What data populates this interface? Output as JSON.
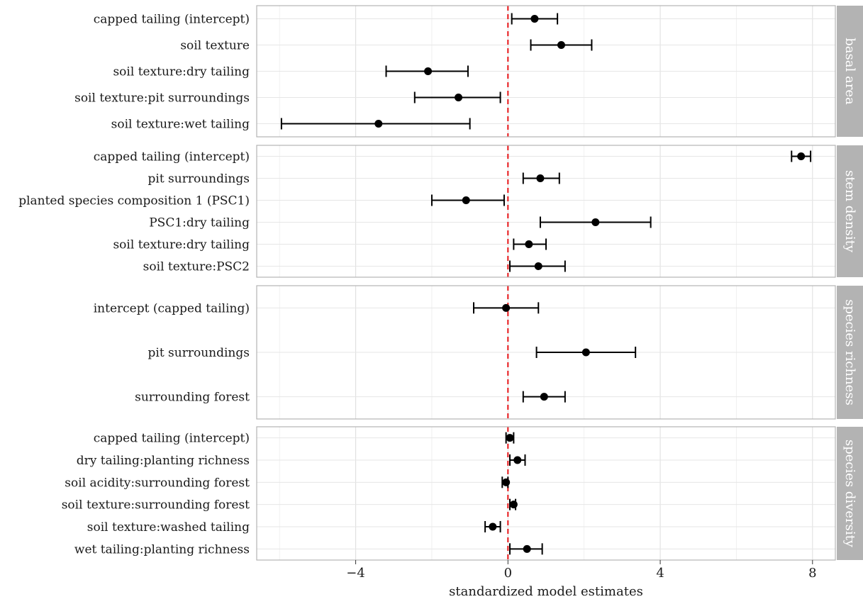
{
  "chart_data": {
    "type": "scatter",
    "subtype": "coefficient-plot-with-error-bars",
    "xlabel": "standardized model estimates",
    "xlim": [
      -6.6,
      8.6
    ],
    "xticks": [
      -4,
      0,
      4,
      8
    ],
    "xtick_labels": [
      "−4",
      "0",
      "4",
      "8"
    ],
    "reference_line": {
      "x": 0,
      "style": "dashed",
      "color": "#e8282b"
    },
    "grid": true,
    "colors": {
      "point": "#000000",
      "errorbar": "#000000",
      "strip_background": "#b3b3b3",
      "strip_text": "#ffffff",
      "panel_border": "#b3b3b3",
      "grid": "#e6e6e6"
    },
    "panels": [
      {
        "name": "basal area",
        "terms": [
          {
            "label": "capped tailing (intercept)",
            "estimate": 0.7,
            "lower": 0.1,
            "upper": 1.3
          },
          {
            "label": "soil texture",
            "estimate": 1.4,
            "lower": 0.6,
            "upper": 2.2
          },
          {
            "label": "soil texture:dry tailing",
            "estimate": -2.1,
            "lower": -3.2,
            "upper": -1.05
          },
          {
            "label": "soil texture:pit surroundings",
            "estimate": -1.3,
            "lower": -2.45,
            "upper": -0.2
          },
          {
            "label": "soil texture:wet tailing",
            "estimate": -3.4,
            "lower": -5.95,
            "upper": -1.0
          }
        ]
      },
      {
        "name": "stem density",
        "terms": [
          {
            "label": "capped tailing (intercept)",
            "estimate": 7.7,
            "lower": 7.45,
            "upper": 7.95
          },
          {
            "label": "pit surroundings",
            "estimate": 0.85,
            "lower": 0.4,
            "upper": 1.35
          },
          {
            "label": "planted species composition 1 (PSC1)",
            "estimate": -1.1,
            "lower": -2.0,
            "upper": -0.1
          },
          {
            "label": "PSC1:dry tailing",
            "estimate": 2.3,
            "lower": 0.85,
            "upper": 3.75
          },
          {
            "label": "soil texture:dry tailing",
            "estimate": 0.55,
            "lower": 0.15,
            "upper": 1.0
          },
          {
            "label": "soil texture:PSC2",
            "estimate": 0.8,
            "lower": 0.05,
            "upper": 1.5
          }
        ]
      },
      {
        "name": "species richness",
        "terms": [
          {
            "label": "intercept (capped tailing)",
            "estimate": -0.05,
            "lower": -0.9,
            "upper": 0.8
          },
          {
            "label": "pit surroundings",
            "estimate": 2.05,
            "lower": 0.75,
            "upper": 3.35
          },
          {
            "label": "surrounding forest",
            "estimate": 0.95,
            "lower": 0.4,
            "upper": 1.5
          }
        ]
      },
      {
        "name": "species diversity",
        "terms": [
          {
            "label": "capped tailing (intercept)",
            "estimate": 0.05,
            "lower": -0.05,
            "upper": 0.15
          },
          {
            "label": "dry tailing:planting richness",
            "estimate": 0.25,
            "lower": 0.05,
            "upper": 0.45
          },
          {
            "label": "soil acidity:surrounding forest",
            "estimate": -0.05,
            "lower": -0.15,
            "upper": 0.0
          },
          {
            "label": "soil texture:surrounding forest",
            "estimate": 0.15,
            "lower": 0.05,
            "upper": 0.2
          },
          {
            "label": "soil texture:washed tailing",
            "estimate": -0.4,
            "lower": -0.6,
            "upper": -0.2
          },
          {
            "label": "wet tailing:planting richness",
            "estimate": 0.5,
            "lower": 0.05,
            "upper": 0.9
          }
        ]
      }
    ]
  }
}
